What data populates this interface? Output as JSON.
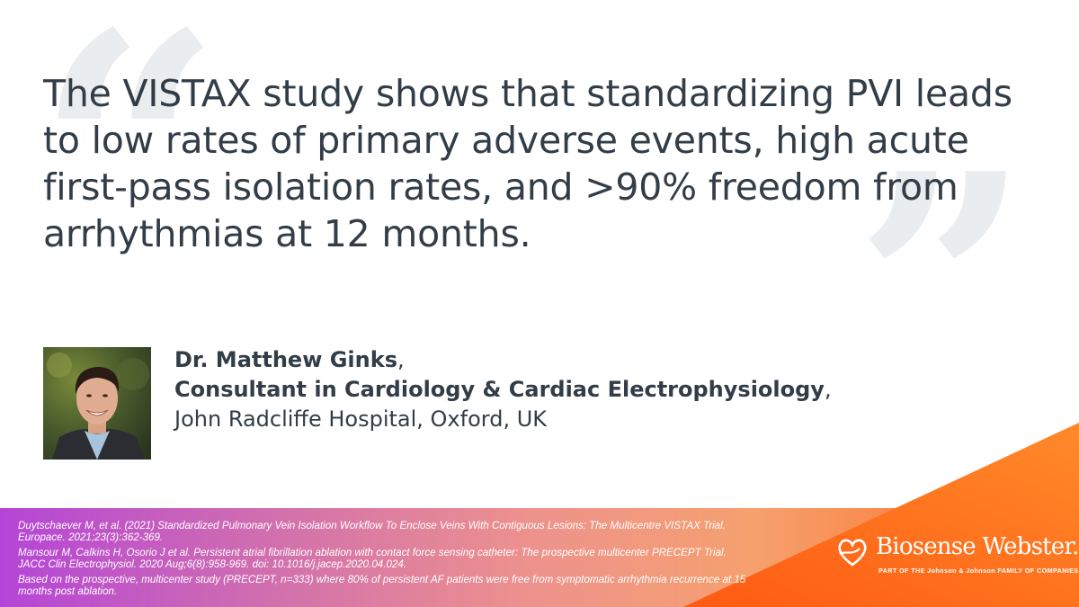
{
  "quote": {
    "open_mark": "“",
    "close_mark": "”",
    "text": "The VISTAX study shows that standardizing PVI leads to low rates of primary adverse events, high acute first-pass isolation rates, and >90% freedom from arrhythmias at 12 months."
  },
  "attribution": {
    "name": "Dr. Matthew Ginks",
    "name_comma": ",",
    "role": "Consultant in Cardiology & Cardiac Electrophysiology",
    "role_comma": ",",
    "institution": "John Radcliffe Hospital, Oxford, UK"
  },
  "footer": {
    "references": [
      "Duytschaever M, et al. (2021) Standardized Pulmonary Vein Isolation Workflow To Enclose Veins With Contiguous Lesions: The Multicentre VISTAX Trial. Europace. 2021;23(3):362-369.",
      "Mansour M, Calkins H, Osorio J et al. Persistent atrial fibrillation ablation with contact force sensing catheter: The prospective multicenter PRECEPT Trial. JACC Clin Electrophysiol. 2020 Aug;6(8):958-969. doi: 10.1016/j.jacep.2020.04.024.",
      "Based on the prospective, multicenter study (PRECEPT, n=333) where 80% of persistent AF patients were free from symptomatic arrhythmia recurrence at 15 months post ablation."
    ]
  },
  "brand": {
    "name": "Biosense Webster.",
    "tagline": "PART OF THE Johnson & Johnson FAMILY OF COMPANIES",
    "logo_icon": "heart-ribbon-icon"
  },
  "colors": {
    "text": "#333d47",
    "quote_mark": "#eaedef",
    "gradient_start": "#b545d7",
    "gradient_end": "#ff6a1a",
    "accent_orange": "#ff6a1a"
  }
}
